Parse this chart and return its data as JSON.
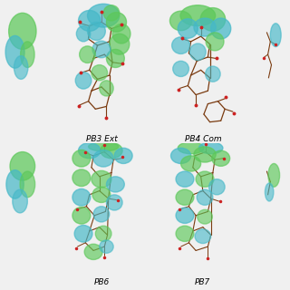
{
  "background_color": "#f0f0f0",
  "green_color": "#5dc85a",
  "cyan_color": "#45b8c8",
  "stick_dark": "#7a3b10",
  "stick_gray": "#999999",
  "red_color": "#cc2222",
  "label_fontsize": 6.5,
  "panel_bg": "#f0f0f0",
  "labels": {
    "pb3": "PB3 Ext",
    "pb4": "PB4 Com",
    "pb6": "PB6",
    "pb7": "PB7"
  }
}
